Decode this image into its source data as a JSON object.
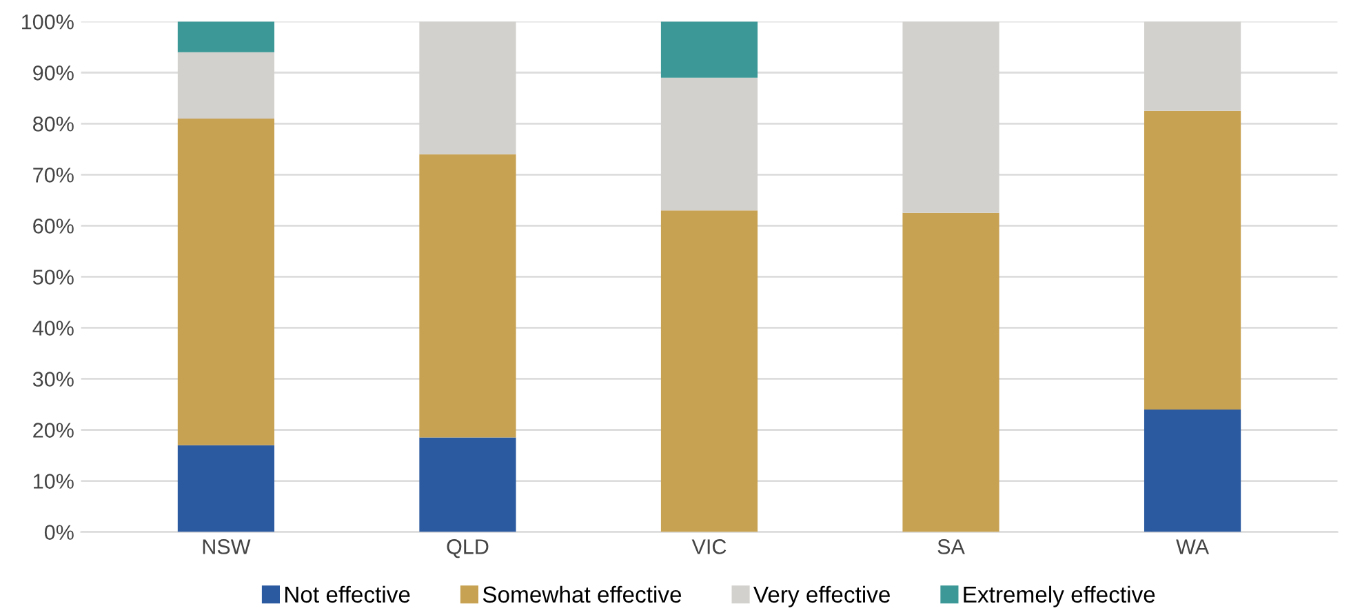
{
  "chart_data": {
    "type": "bar",
    "stacked": true,
    "categories": [
      "NSW",
      "QLD",
      "VIC",
      "SA",
      "WA"
    ],
    "series": [
      {
        "name": "Not effective",
        "color": "#2c5aa0",
        "values": [
          17,
          18.5,
          0,
          0,
          24
        ]
      },
      {
        "name": "Somewhat effective",
        "color": "#c8a253",
        "values": [
          64,
          55.5,
          63,
          62.5,
          58.5
        ]
      },
      {
        "name": "Very effective",
        "color": "#d3d1ce",
        "values": [
          13,
          26,
          26,
          37.5,
          17.5
        ]
      },
      {
        "name": "Extremely effective",
        "color": "#3c9896",
        "values": [
          6,
          0,
          11,
          0,
          0
        ]
      }
    ],
    "ylim": [
      0,
      100
    ],
    "yticks": [
      {
        "value": 0,
        "label": "0%"
      },
      {
        "value": 10,
        "label": "10%"
      },
      {
        "value": 20,
        "label": "20%"
      },
      {
        "value": 30,
        "label": "30%"
      },
      {
        "value": 40,
        "label": "40%"
      },
      {
        "value": 50,
        "label": "50%"
      },
      {
        "value": 60,
        "label": "60%"
      },
      {
        "value": 70,
        "label": "70%"
      },
      {
        "value": 80,
        "label": "80%"
      },
      {
        "value": 90,
        "label": "90%"
      },
      {
        "value": 100,
        "label": "100%"
      }
    ],
    "grid": "y",
    "legend": "bottom"
  }
}
